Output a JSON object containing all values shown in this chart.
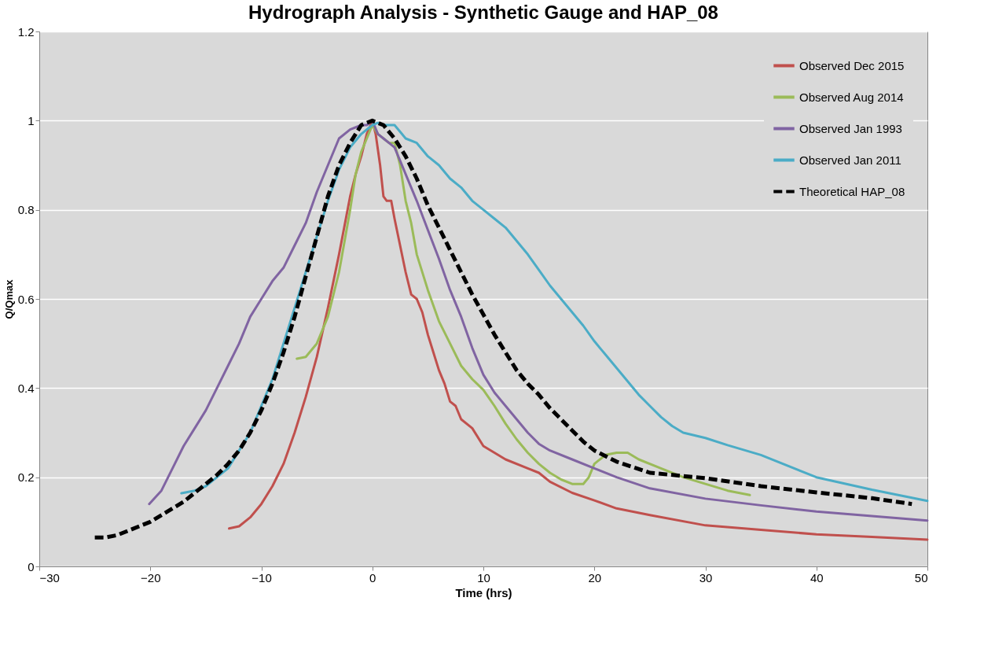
{
  "chart_data": {
    "type": "line",
    "title": "Hydrograph Analysis - Synthetic Gauge and HAP_08",
    "xlabel": "Time (hrs)",
    "ylabel": "Q/Qmax",
    "xlim": [
      -30,
      50
    ],
    "xticks": [
      -30,
      -20,
      -10,
      0,
      10,
      20,
      30,
      40,
      50
    ],
    "ylim": [
      0,
      1.2
    ],
    "yticks": [
      0,
      0.2,
      0.4,
      0.6,
      0.8,
      1,
      1.2
    ],
    "grid": "y",
    "legend": "top right",
    "series": [
      {
        "name": "Observed Dec 2015",
        "color": "#c0504d",
        "line_style": "solid",
        "x": [
          -12.9,
          -12,
          -11,
          -10,
          -9,
          -8,
          -7,
          -6,
          -5,
          -4,
          -3,
          -2,
          -1.5,
          -1,
          -0.5,
          0,
          0.3,
          0.7,
          1,
          1.3,
          1.7,
          2,
          2.5,
          3,
          3.5,
          4,
          4.5,
          5,
          5.5,
          6,
          6.5,
          7,
          7.5,
          8,
          9,
          10,
          11,
          12,
          14,
          15,
          16,
          18,
          20,
          22,
          25,
          30,
          35,
          40,
          45,
          50
        ],
        "values": [
          0.085,
          0.09,
          0.11,
          0.14,
          0.18,
          0.23,
          0.3,
          0.38,
          0.47,
          0.58,
          0.7,
          0.83,
          0.88,
          0.92,
          0.97,
          1.0,
          0.97,
          0.9,
          0.83,
          0.82,
          0.82,
          0.78,
          0.72,
          0.66,
          0.61,
          0.6,
          0.57,
          0.52,
          0.48,
          0.44,
          0.41,
          0.37,
          0.36,
          0.33,
          0.31,
          0.27,
          0.255,
          0.24,
          0.22,
          0.21,
          0.19,
          0.165,
          0.148,
          0.13,
          0.115,
          0.092,
          0.082,
          0.072,
          0.066,
          0.06
        ]
      },
      {
        "name": "Observed Aug 2014",
        "color": "#9bbb59",
        "line_style": "solid",
        "x": [
          -6.8,
          -6,
          -5,
          -4,
          -3,
          -2,
          -1.5,
          -1,
          -0.5,
          0,
          0.5,
          1,
          1.5,
          2,
          2.5,
          3,
          3.5,
          4,
          5,
          6,
          7,
          8,
          9,
          10,
          11,
          12,
          13,
          14,
          15,
          16,
          17,
          18,
          19,
          19.5,
          20,
          21,
          22,
          23,
          24,
          26,
          28,
          30,
          32,
          34
        ],
        "values": [
          0.466,
          0.47,
          0.5,
          0.56,
          0.66,
          0.8,
          0.88,
          0.93,
          0.96,
          0.99,
          0.97,
          0.96,
          0.95,
          0.95,
          0.9,
          0.82,
          0.77,
          0.7,
          0.62,
          0.55,
          0.5,
          0.45,
          0.42,
          0.396,
          0.36,
          0.32,
          0.285,
          0.255,
          0.23,
          0.21,
          0.195,
          0.185,
          0.185,
          0.2,
          0.23,
          0.25,
          0.255,
          0.255,
          0.24,
          0.22,
          0.2,
          0.185,
          0.17,
          0.16
        ]
      },
      {
        "name": "Observed Jan 1993",
        "color": "#8064a2",
        "line_style": "solid",
        "x": [
          -20.1,
          -19,
          -18,
          -17,
          -16,
          -15,
          -14,
          -13,
          -12,
          -11,
          -10,
          -9,
          -8,
          -7,
          -6,
          -5,
          -4,
          -3,
          -2,
          -1,
          -0.5,
          0,
          0.5,
          1,
          1.5,
          2,
          3,
          4,
          5,
          6,
          7,
          8,
          9,
          10,
          11,
          12,
          13,
          14,
          15,
          16,
          18,
          20,
          22,
          25,
          30,
          35,
          40,
          45,
          50
        ],
        "values": [
          0.14,
          0.17,
          0.22,
          0.27,
          0.31,
          0.35,
          0.4,
          0.45,
          0.5,
          0.56,
          0.6,
          0.64,
          0.67,
          0.72,
          0.77,
          0.84,
          0.9,
          0.96,
          0.98,
          0.99,
          0.99,
          1.0,
          0.97,
          0.96,
          0.95,
          0.94,
          0.88,
          0.82,
          0.755,
          0.69,
          0.62,
          0.56,
          0.49,
          0.43,
          0.39,
          0.36,
          0.33,
          0.3,
          0.275,
          0.26,
          0.24,
          0.22,
          0.2,
          0.175,
          0.152,
          0.137,
          0.123,
          0.113,
          0.103
        ]
      },
      {
        "name": "Observed Jan 2011",
        "color": "#4bacc6",
        "line_style": "solid",
        "x": [
          -17.2,
          -16,
          -15,
          -14,
          -13,
          -12,
          -11,
          -10,
          -9,
          -8,
          -7,
          -6,
          -5,
          -4,
          -3,
          -2,
          -1,
          0,
          0.5,
          1,
          2,
          3,
          4,
          5,
          6,
          7,
          8,
          9,
          10,
          11,
          12,
          13,
          14,
          15,
          16,
          17,
          18,
          19,
          20,
          21,
          22,
          23,
          24,
          25,
          26,
          27,
          28,
          30,
          32,
          35,
          40,
          45,
          50
        ],
        "values": [
          0.164,
          0.17,
          0.18,
          0.2,
          0.22,
          0.26,
          0.3,
          0.36,
          0.42,
          0.5,
          0.58,
          0.66,
          0.74,
          0.82,
          0.89,
          0.94,
          0.97,
          0.99,
          0.995,
          0.99,
          0.99,
          0.96,
          0.95,
          0.92,
          0.9,
          0.87,
          0.85,
          0.82,
          0.8,
          0.78,
          0.76,
          0.73,
          0.7,
          0.665,
          0.63,
          0.6,
          0.57,
          0.54,
          0.505,
          0.475,
          0.445,
          0.415,
          0.385,
          0.36,
          0.335,
          0.315,
          0.3,
          0.288,
          0.272,
          0.25,
          0.2,
          0.172,
          0.147
        ]
      },
      {
        "name": "Theoretical HAP_08",
        "color": "#000000",
        "line_style": "dashed",
        "x": [
          -25,
          -24,
          -23,
          -22,
          -21,
          -20,
          -19,
          -18,
          -17,
          -16,
          -15,
          -14,
          -13,
          -12,
          -11,
          -10,
          -9,
          -8,
          -7,
          -6,
          -5,
          -4,
          -3,
          -2,
          -1,
          0,
          1,
          2,
          3,
          4,
          5,
          6,
          7,
          8,
          9,
          10,
          11,
          12,
          13,
          14,
          15,
          16,
          17,
          18,
          19,
          20,
          22,
          25,
          30,
          35,
          40,
          45,
          48.6
        ],
        "values": [
          0.065,
          0.065,
          0.07,
          0.08,
          0.09,
          0.1,
          0.115,
          0.13,
          0.145,
          0.165,
          0.185,
          0.205,
          0.23,
          0.26,
          0.3,
          0.35,
          0.41,
          0.48,
          0.56,
          0.65,
          0.74,
          0.83,
          0.9,
          0.95,
          0.99,
          1.0,
          0.99,
          0.96,
          0.92,
          0.87,
          0.81,
          0.76,
          0.71,
          0.66,
          0.61,
          0.565,
          0.52,
          0.48,
          0.44,
          0.41,
          0.385,
          0.355,
          0.33,
          0.305,
          0.28,
          0.26,
          0.235,
          0.21,
          0.198,
          0.18,
          0.166,
          0.153,
          0.14
        ]
      }
    ]
  }
}
